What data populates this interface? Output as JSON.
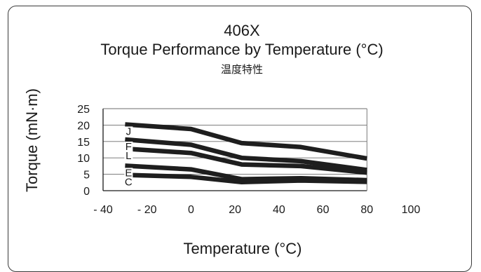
{
  "chart_data": {
    "type": "line",
    "title": "406X",
    "subtitle": "Torque Performance by Temperature (°C)",
    "subtitle2": "温度特性",
    "xlabel": "Temperature (°C)",
    "ylabel": "Torque (mN·m)",
    "xlim": [
      -40,
      100
    ],
    "ylim": [
      0,
      25
    ],
    "xticks": [
      "- 40",
      "- 20",
      "0",
      "20",
      "40",
      "60",
      "80",
      "100"
    ],
    "xtick_values": [
      -40,
      -20,
      0,
      20,
      40,
      60,
      80,
      100
    ],
    "yticks": [
      "0",
      "5",
      "10",
      "15",
      "20",
      "25"
    ],
    "ytick_values": [
      0,
      5,
      10,
      15,
      20,
      25
    ],
    "grid": "horizontal",
    "series": [
      {
        "name": "J",
        "x": [
          -30,
          0,
          23,
          50,
          80
        ],
        "y": [
          20.2,
          18.8,
          14.5,
          13.3,
          9.8
        ]
      },
      {
        "name": "F",
        "x": [
          -30,
          0,
          23,
          50,
          80
        ],
        "y": [
          15.6,
          14.0,
          10.0,
          9.0,
          6.3
        ]
      },
      {
        "name": "L",
        "x": [
          -30,
          0,
          23,
          50,
          80
        ],
        "y": [
          12.8,
          11.5,
          8.0,
          7.5,
          5.5
        ]
      },
      {
        "name": "E",
        "x": [
          -30,
          0,
          23,
          50,
          80
        ],
        "y": [
          7.6,
          6.5,
          3.5,
          3.8,
          3.2
        ]
      },
      {
        "name": "C",
        "x": [
          -30,
          0,
          23,
          50,
          80
        ],
        "y": [
          4.8,
          4.2,
          2.6,
          3.1,
          2.7
        ]
      }
    ],
    "series_color": "#1e1e1e"
  }
}
